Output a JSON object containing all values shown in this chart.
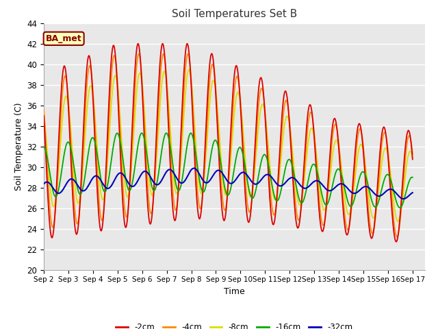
{
  "title": "Soil Temperatures Set B",
  "xlabel": "Time",
  "ylabel": "Soil Temperature (C)",
  "ylim": [
    20,
    44
  ],
  "figure_bg": "#ffffff",
  "plot_bg_color": "#e8e8e8",
  "grid_color": "#ffffff",
  "annotation_text": "BA_met",
  "annotation_bg": "#ffffbb",
  "annotation_border": "#880000",
  "series_colors": {
    "-2cm": "#dd0000",
    "-4cm": "#ff8800",
    "-8cm": "#dddd00",
    "-16cm": "#00aa00",
    "-32cm": "#0000bb"
  },
  "tick_labels": [
    "Sep 2",
    "Sep 3",
    "Sep 4",
    "Sep 5",
    "Sep 6",
    "Sep 7",
    "Sep 8",
    "Sep 9",
    "Sep 10",
    "Sep 11",
    "Sep 12",
    "Sep 13",
    "Sep 14",
    "Sep 15",
    "Sep 16",
    "Sep 17"
  ],
  "yticks": [
    20,
    22,
    24,
    26,
    28,
    30,
    32,
    34,
    36,
    38,
    40,
    42,
    44
  ]
}
